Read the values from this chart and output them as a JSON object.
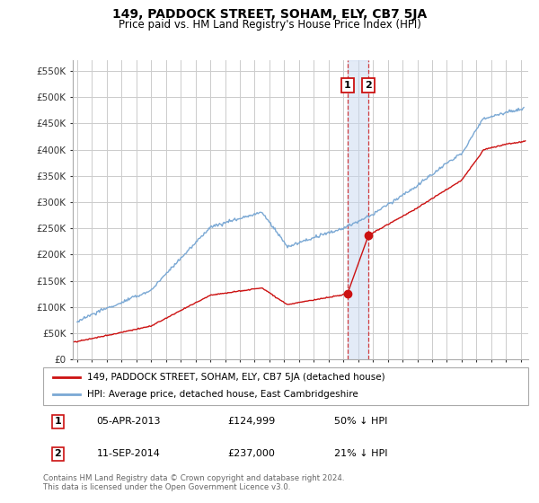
{
  "title": "149, PADDOCK STREET, SOHAM, ELY, CB7 5JA",
  "subtitle": "Price paid vs. HM Land Registry's House Price Index (HPI)",
  "legend_line1": "149, PADDOCK STREET, SOHAM, ELY, CB7 5JA (detached house)",
  "legend_line2": "HPI: Average price, detached house, East Cambridgeshire",
  "footnote": "Contains HM Land Registry data © Crown copyright and database right 2024.\nThis data is licensed under the Open Government Licence v3.0.",
  "annotation1": {
    "label": "1",
    "date": "05-APR-2013",
    "price": "£124,999",
    "hpi": "50% ↓ HPI"
  },
  "annotation2": {
    "label": "2",
    "date": "11-SEP-2014",
    "price": "£237,000",
    "hpi": "21% ↓ HPI"
  },
  "hpi_color": "#7aa8d4",
  "sale_color": "#cc1111",
  "dot_color": "#cc1111",
  "ylim": [
    0,
    570000
  ],
  "yticks": [
    0,
    50000,
    100000,
    150000,
    200000,
    250000,
    300000,
    350000,
    400000,
    450000,
    500000,
    550000
  ],
  "xlim_start": 1994.7,
  "xlim_end": 2025.5,
  "background_color": "#ffffff",
  "grid_color": "#cccccc",
  "sale1_date": 2013.27,
  "sale1_price": 124999,
  "sale2_date": 2014.7,
  "sale2_price": 237000
}
